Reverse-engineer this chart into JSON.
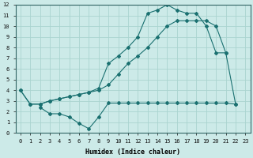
{
  "xlabel": "Humidex (Indice chaleur)",
  "bg_color": "#cceae8",
  "grid_color": "#aad4d0",
  "line_color": "#1a7070",
  "line1_x": [
    0,
    1,
    2,
    3,
    4,
    5,
    6,
    7,
    8,
    9,
    10,
    11,
    12,
    13,
    14,
    15,
    16,
    17,
    18,
    19,
    20,
    21
  ],
  "line1_y": [
    4.0,
    2.7,
    2.7,
    3.0,
    3.2,
    3.4,
    3.6,
    3.8,
    4.2,
    6.5,
    7.2,
    8.0,
    9.0,
    11.2,
    11.5,
    12.0,
    11.5,
    11.2,
    11.2,
    10.0,
    7.5,
    7.5
  ],
  "line2_x": [
    0,
    1,
    2,
    3,
    4,
    5,
    6,
    7,
    8,
    9,
    10,
    11,
    12,
    13,
    14,
    15,
    16,
    17,
    18,
    19,
    20,
    21,
    22
  ],
  "line2_y": [
    4.0,
    2.7,
    2.7,
    3.0,
    3.2,
    3.4,
    3.6,
    3.8,
    4.0,
    4.5,
    5.5,
    6.5,
    7.2,
    8.0,
    9.0,
    10.0,
    10.5,
    10.5,
    10.5,
    10.5,
    10.0,
    7.5,
    2.7
  ],
  "line3_x": [
    2,
    3,
    4,
    5,
    6,
    7,
    8,
    9,
    10,
    11,
    12,
    13,
    14,
    15,
    16,
    17,
    18,
    19,
    20,
    21,
    22
  ],
  "line3_y": [
    2.4,
    1.8,
    1.8,
    1.5,
    0.9,
    0.4,
    1.5,
    2.8,
    2.8,
    2.8,
    2.8,
    2.8,
    2.8,
    2.8,
    2.8,
    2.8,
    2.8,
    2.8,
    2.8,
    2.8,
    2.7
  ],
  "ylim": [
    0,
    12
  ],
  "xlim_min": -0.5,
  "xlim_max": 23.5,
  "yticks": [
    0,
    1,
    2,
    3,
    4,
    5,
    6,
    7,
    8,
    9,
    10,
    11,
    12
  ],
  "xticks": [
    0,
    1,
    2,
    3,
    4,
    5,
    6,
    7,
    8,
    9,
    10,
    11,
    12,
    13,
    14,
    15,
    16,
    17,
    18,
    19,
    20,
    21,
    22,
    23
  ],
  "tick_fontsize": 5.0,
  "xlabel_fontsize": 6.0
}
